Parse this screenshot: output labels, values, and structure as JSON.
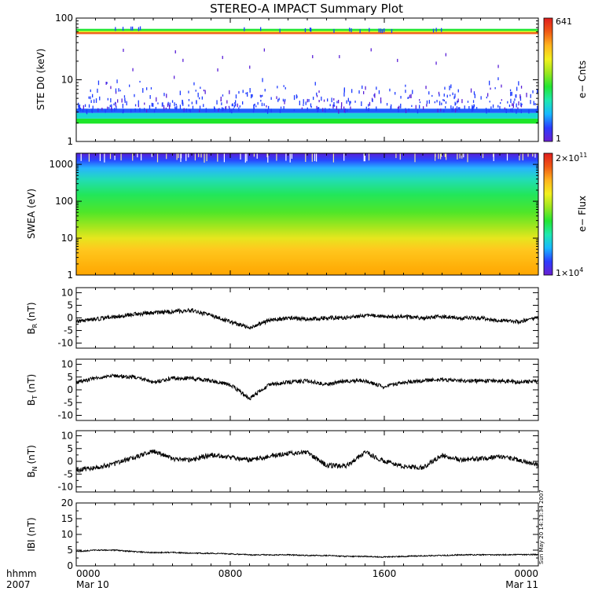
{
  "title": "STEREO-A IMPACT Summary Plot",
  "timestamp": "Sun May 20 14:13:34 2007",
  "time_axis": {
    "row1": [
      "0000",
      "0800",
      "1600",
      "0000"
    ],
    "row2": [
      "Mar 10",
      "",
      "",
      "Mar 11"
    ],
    "left_row1": "hhmm",
    "left_row2": "2007"
  },
  "chart_data": [
    {
      "type": "heatmap",
      "panel": "ste",
      "ylabel": "STE D0 (keV)",
      "y_scale": "log",
      "ylim": [
        1,
        100
      ],
      "yticks": [
        "1",
        "10",
        "100"
      ],
      "colorbar": {
        "label": "e− Cnts",
        "max": "641",
        "min": "1"
      },
      "bands": [
        {
          "from": 1.95,
          "to": 2.35,
          "color": "#1ee62a"
        },
        {
          "from": 2.35,
          "to": 2.9,
          "color": "#19d7d2"
        },
        {
          "from": 2.9,
          "to": 3.4,
          "color": "#1f5cff"
        },
        {
          "from": 55,
          "to": 59,
          "color": "#f0641e"
        },
        {
          "from": 59,
          "to": 62,
          "color": "#dcf01e"
        },
        {
          "from": 62,
          "to": 67,
          "color": "#22e632"
        }
      ]
    },
    {
      "type": "heatmap",
      "panel": "swea",
      "ylabel": "SWEA (eV)",
      "y_scale": "log",
      "ylim": [
        1,
        2000
      ],
      "yticks": [
        "1",
        "10",
        "100",
        "1000"
      ],
      "colorbar": {
        "label": "e− Flux",
        "max": "2×10",
        "max_exp": "11",
        "min": "1×10",
        "min_exp": "4"
      },
      "gradient": [
        {
          "energy": 2000,
          "color": "#5a1fd7"
        },
        {
          "energy": 1300,
          "color": "#2846ff"
        },
        {
          "energy": 800,
          "color": "#28b4ff"
        },
        {
          "energy": 400,
          "color": "#22dcb9"
        },
        {
          "energy": 150,
          "color": "#22e65a"
        },
        {
          "energy": 50,
          "color": "#50e628"
        },
        {
          "energy": 20,
          "color": "#a5e61e"
        },
        {
          "energy": 10,
          "color": "#e6e61e"
        },
        {
          "energy": 5,
          "color": "#ffc81e"
        },
        {
          "energy": 1,
          "color": "#ffa500"
        }
      ]
    },
    {
      "type": "line",
      "panel": "br",
      "ylabel": "B",
      "ylabel_sub": "R",
      "ylabel_unit": "(nT)",
      "ylim": [
        -12,
        12
      ],
      "yticks": [
        -10,
        -5,
        0,
        5,
        10
      ],
      "x": [
        0,
        1,
        2,
        3,
        4,
        5,
        6,
        7,
        8,
        9,
        10,
        11,
        12,
        13,
        14,
        15,
        16,
        17,
        18,
        19,
        20,
        21,
        22,
        23,
        24
      ],
      "values": [
        -1.5,
        -0.5,
        0.5,
        1.5,
        2.0,
        2.5,
        3.0,
        1.0,
        -1.5,
        -4.0,
        -1.0,
        0.0,
        -0.5,
        0.0,
        0.0,
        1.0,
        0.5,
        0.5,
        0.0,
        0.5,
        0.0,
        0.0,
        -1.0,
        -1.5,
        0.0
      ]
    },
    {
      "type": "line",
      "panel": "bt",
      "ylabel": "B",
      "ylabel_sub": "T",
      "ylabel_unit": "(nT)",
      "ylim": [
        -12,
        12
      ],
      "yticks": [
        -10,
        -5,
        0,
        5,
        10
      ],
      "x": [
        0,
        1,
        2,
        3,
        4,
        5,
        6,
        7,
        8,
        9,
        10,
        11,
        12,
        13,
        14,
        15,
        16,
        17,
        18,
        19,
        20,
        21,
        22,
        23,
        24
      ],
      "values": [
        3.0,
        4.5,
        5.5,
        5.0,
        3.0,
        4.5,
        4.5,
        3.5,
        2.0,
        -3.5,
        2.0,
        3.0,
        3.5,
        2.0,
        3.5,
        3.5,
        1.0,
        3.0,
        3.5,
        4.0,
        3.5,
        3.5,
        3.5,
        3.0,
        3.5
      ]
    },
    {
      "type": "line",
      "panel": "bn",
      "ylabel": "B",
      "ylabel_sub": "N",
      "ylabel_unit": "(nT)",
      "ylim": [
        -12,
        12
      ],
      "yticks": [
        -10,
        -5,
        0,
        5,
        10
      ],
      "x": [
        0,
        1,
        2,
        3,
        4,
        5,
        6,
        7,
        8,
        9,
        10,
        11,
        12,
        13,
        14,
        15,
        16,
        17,
        18,
        19,
        20,
        21,
        22,
        23,
        24
      ],
      "values": [
        -3.5,
        -2.5,
        -1.0,
        1.5,
        4.0,
        1.0,
        0.5,
        2.5,
        1.5,
        0.5,
        2.0,
        3.0,
        3.5,
        -1.5,
        -2.0,
        3.5,
        0.0,
        -2.0,
        -2.5,
        2.5,
        0.5,
        1.0,
        2.0,
        0.5,
        -1.5
      ]
    },
    {
      "type": "line",
      "panel": "bmag",
      "ylabel": "IBI (nT)",
      "ylim": [
        0,
        20
      ],
      "yticks": [
        0,
        5,
        10,
        15,
        20
      ],
      "x": [
        0,
        1,
        2,
        3,
        4,
        5,
        6,
        7,
        8,
        9,
        10,
        11,
        12,
        13,
        14,
        15,
        16,
        17,
        18,
        19,
        20,
        21,
        22,
        23,
        24
      ],
      "values": [
        4.5,
        5.0,
        5.0,
        4.5,
        4.2,
        4.3,
        4.0,
        4.0,
        3.8,
        3.5,
        3.5,
        3.5,
        3.3,
        3.3,
        3.0,
        3.0,
        2.8,
        3.0,
        3.2,
        3.3,
        3.5,
        3.5,
        3.5,
        3.6,
        3.6
      ]
    }
  ]
}
